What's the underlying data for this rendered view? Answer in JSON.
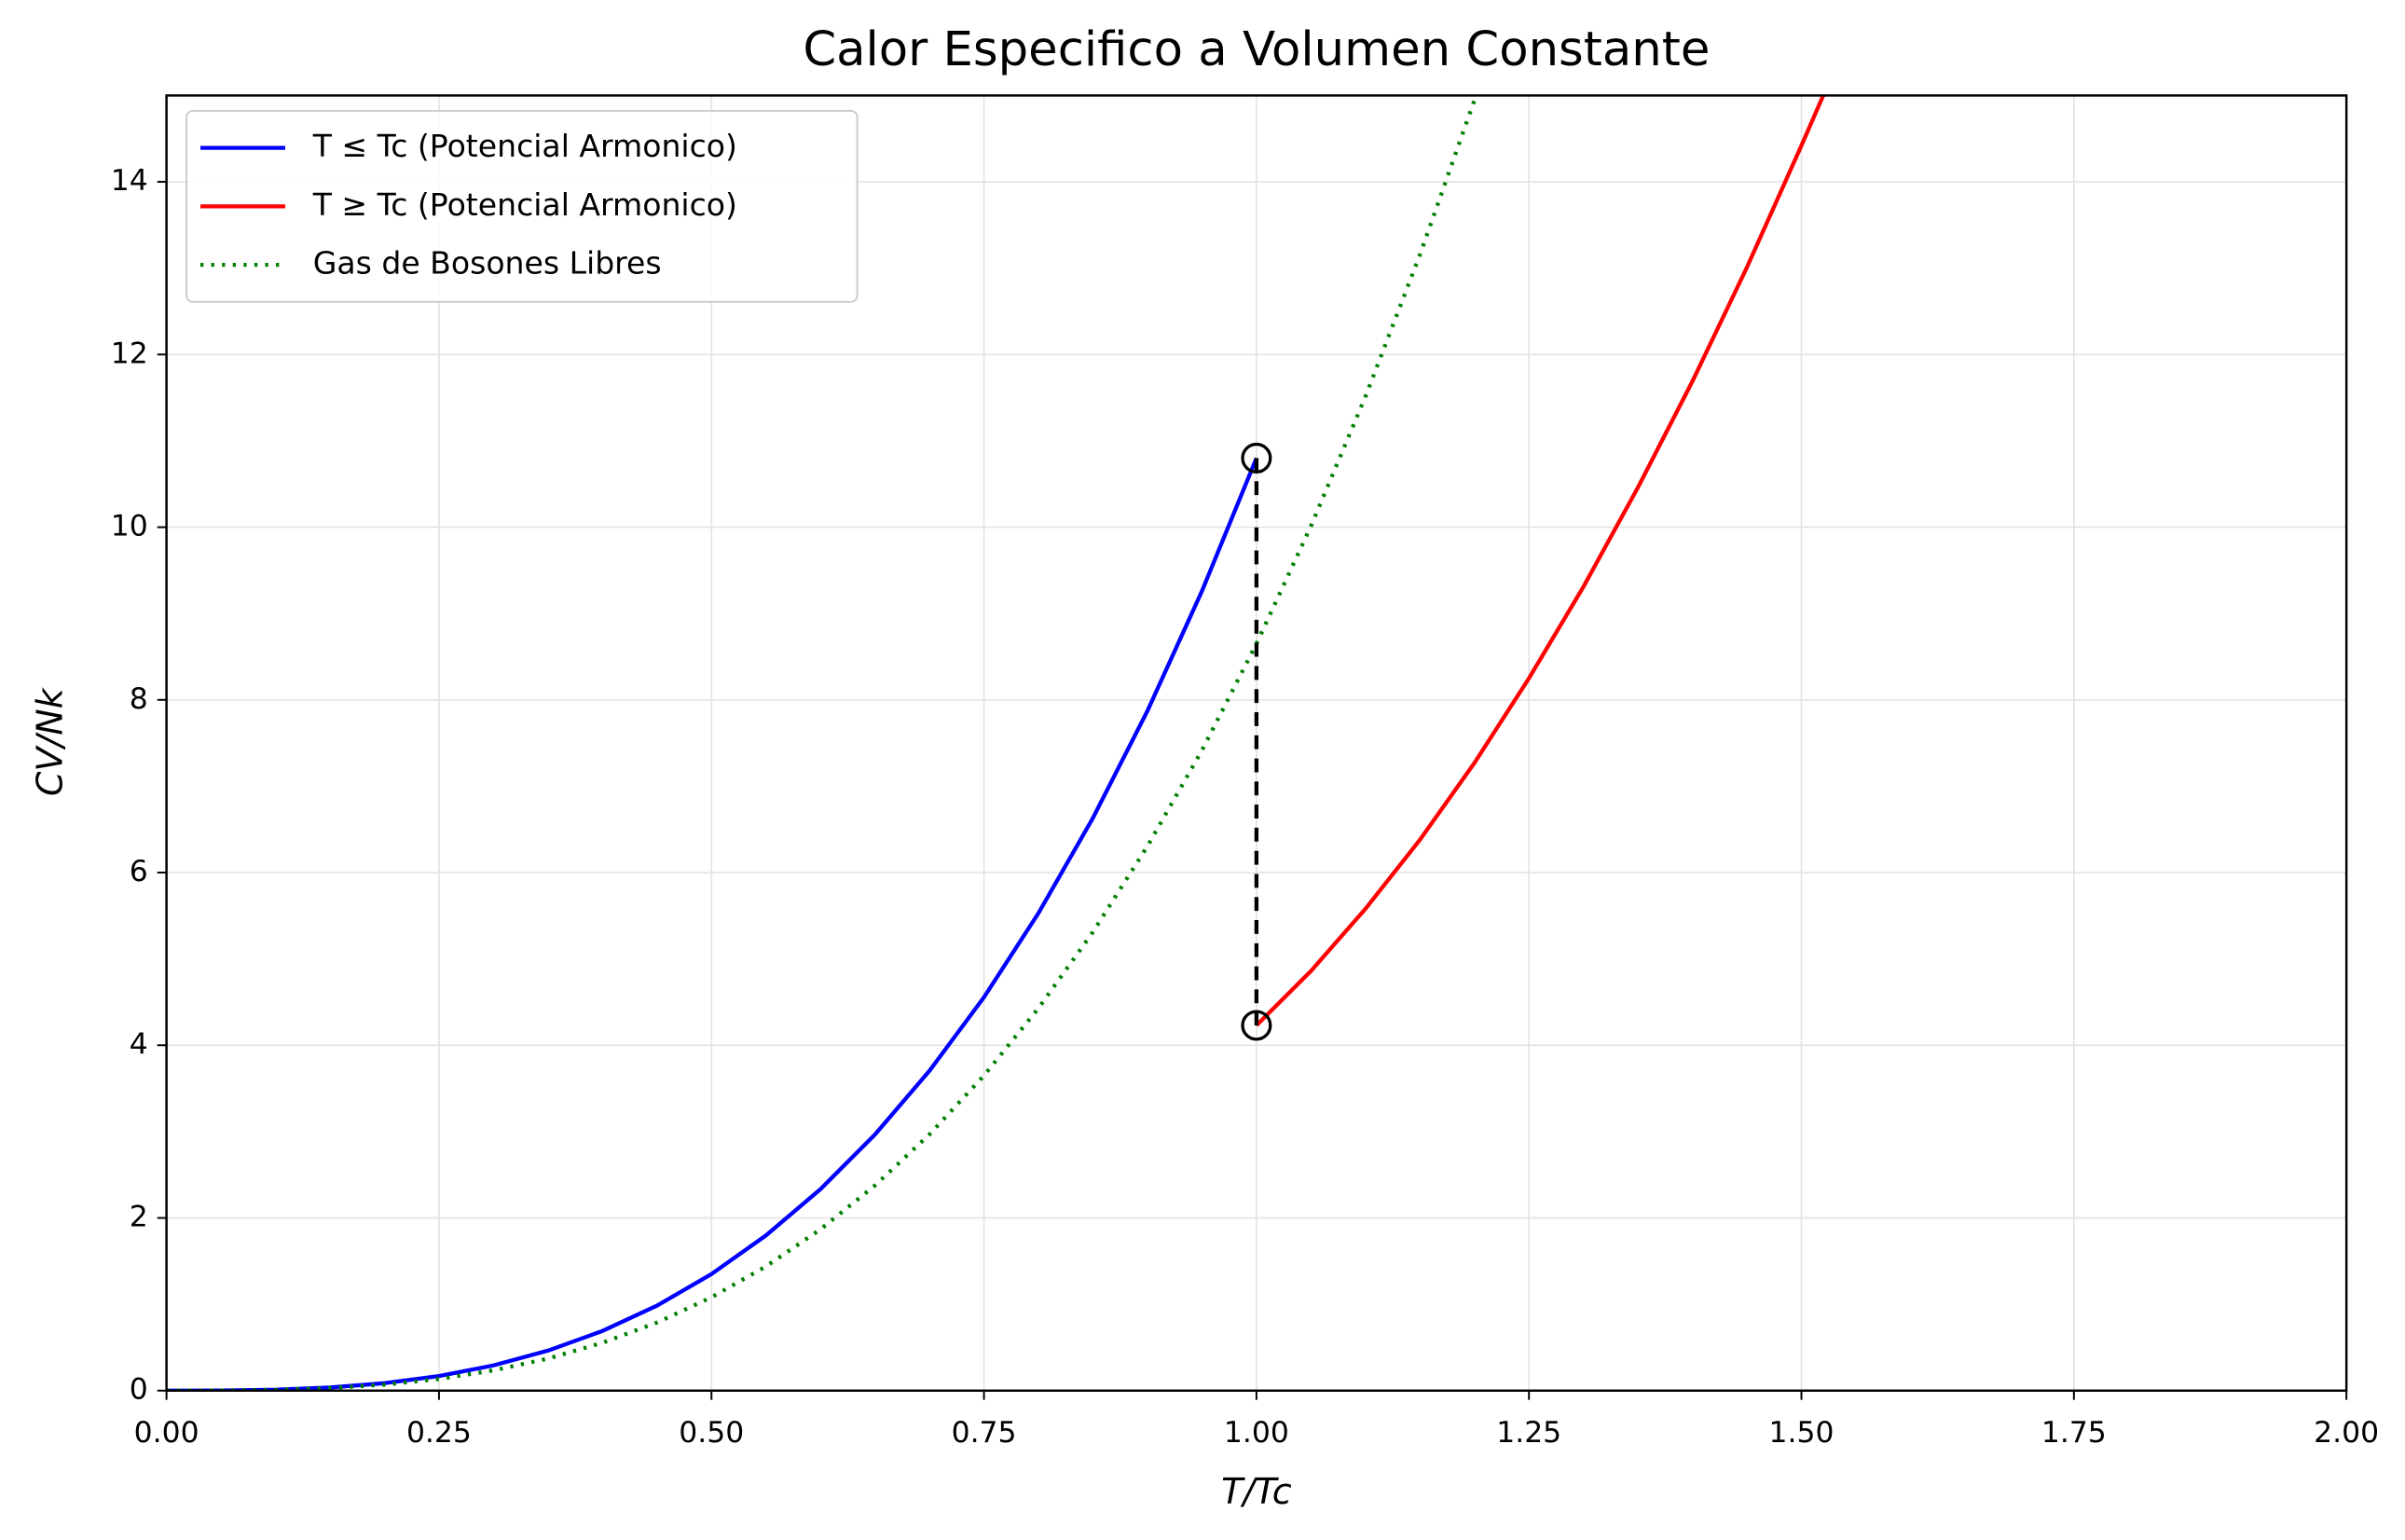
{
  "chart_data": {
    "type": "line",
    "title": "Calor Especifico a Volumen Constante",
    "xlabel": "T/Tc",
    "ylabel": "CV/Nk",
    "xlim": [
      0,
      2
    ],
    "ylim": [
      0,
      15
    ],
    "xticks": [
      {
        "value": 0,
        "label": "0.00"
      },
      {
        "value": 0.25,
        "label": "0.25"
      },
      {
        "value": 0.5,
        "label": "0.50"
      },
      {
        "value": 0.75,
        "label": "0.75"
      },
      {
        "value": 1,
        "label": "1.00"
      },
      {
        "value": 1.25,
        "label": "1.25"
      },
      {
        "value": 1.5,
        "label": "1.50"
      },
      {
        "value": 1.75,
        "label": "1.75"
      },
      {
        "value": 2,
        "label": "2.00"
      }
    ],
    "yticks": [
      0,
      2,
      4,
      6,
      8,
      10,
      12,
      14
    ],
    "grid": true,
    "legend": "upper left",
    "series": [
      {
        "name": "T ≤ Tc (Potencial Armonico)",
        "color": "#0000ff",
        "linestyle": "solid",
        "x": [
          0,
          0.05,
          0.1,
          0.15,
          0.2,
          0.25,
          0.3,
          0.35,
          0.4,
          0.45,
          0.5,
          0.55,
          0.6,
          0.65,
          0.7,
          0.75,
          0.8,
          0.85,
          0.9,
          0.95,
          1
        ],
        "values": [
          0,
          0.001,
          0.011,
          0.036,
          0.086,
          0.169,
          0.292,
          0.463,
          0.691,
          0.984,
          1.35,
          1.797,
          2.333,
          2.966,
          3.704,
          4.556,
          5.53,
          6.633,
          7.873,
          9.26,
          10.8
        ]
      },
      {
        "name": "T ≥ Tc (Potencial Armonico)",
        "color": "#ff0000",
        "linestyle": "solid",
        "x": [
          1,
          1.05,
          1.1,
          1.15,
          1.2,
          1.25,
          1.3,
          1.35,
          1.4,
          1.45,
          1.5,
          1.52
        ],
        "values": [
          4.23,
          4.86,
          5.58,
          6.38,
          7.27,
          8.25,
          9.31,
          10.46,
          11.69,
          13.01,
          14.42,
          15
        ]
      },
      {
        "name": "Gas de Bosones Libres",
        "color": "#008000",
        "linestyle": "dotted",
        "x": [
          0,
          0.05,
          0.1,
          0.15,
          0.2,
          0.25,
          0.3,
          0.35,
          0.4,
          0.45,
          0.5,
          0.55,
          0.6,
          0.65,
          0.7,
          0.75,
          0.8,
          0.85,
          0.9,
          0.95,
          1,
          1.05,
          1.1,
          1.15,
          1.2
        ],
        "values": [
          0,
          0.001,
          0.009,
          0.029,
          0.069,
          0.135,
          0.234,
          0.371,
          0.554,
          0.788,
          1.081,
          1.439,
          1.868,
          2.376,
          2.967,
          3.649,
          4.429,
          5.312,
          6.306,
          7.416,
          8.65,
          10.013,
          11.513,
          13.156,
          14.947
        ]
      }
    ],
    "markers": [
      {
        "x": 1,
        "y": 10.8
      },
      {
        "x": 1,
        "y": 4.23
      }
    ]
  }
}
